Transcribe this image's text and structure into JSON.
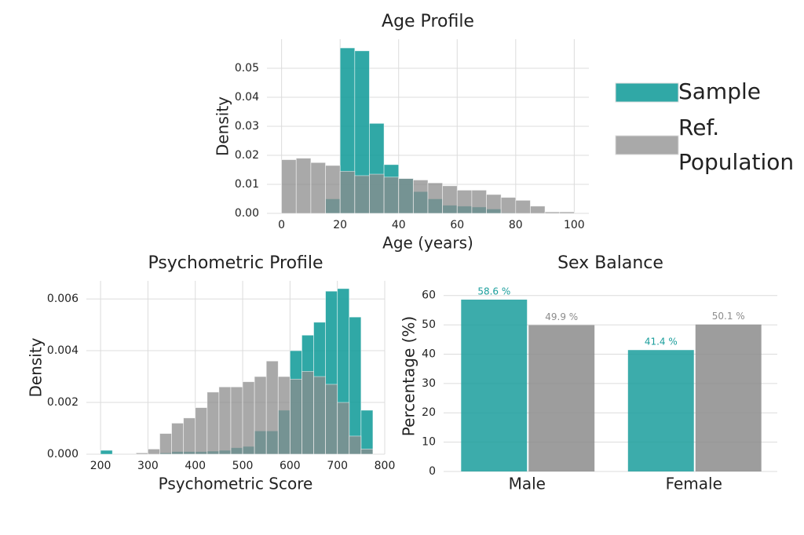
{
  "chart_data": [
    {
      "type": "histogram",
      "title": "Age Profile",
      "x_label": "Age (years)",
      "y_label": "Density",
      "bins": [
        0,
        5,
        10,
        15,
        20,
        25,
        30,
        35,
        40,
        45,
        50,
        55,
        60,
        65,
        70,
        75,
        80,
        85,
        90,
        95,
        100
      ],
      "series": [
        {
          "name": "Sample",
          "color": "#1a9e9c",
          "values": [
            0,
            0,
            0,
            0.005,
            0.057,
            0.056,
            0.031,
            0.0168,
            0.012,
            0.0075,
            0.005,
            0.0028,
            0.0025,
            0.0022,
            0.0015,
            0.0002,
            0,
            0,
            0,
            0
          ]
        },
        {
          "name": "Ref. Population",
          "color": "#8c8c8c",
          "values": [
            0.0185,
            0.019,
            0.0175,
            0.0165,
            0.0145,
            0.013,
            0.0135,
            0.0125,
            0.012,
            0.0115,
            0.0105,
            0.0095,
            0.008,
            0.008,
            0.0065,
            0.0055,
            0.0045,
            0.0025,
            0.0005,
            0.0005
          ]
        }
      ],
      "xlim": [
        -5,
        105
      ],
      "xticks": [
        0,
        20,
        40,
        60,
        80,
        100
      ],
      "ylim": [
        0,
        0.06
      ],
      "yticks": [
        {
          "value": 0,
          "label": "0.00"
        },
        {
          "value": 0.01,
          "label": "0.01"
        },
        {
          "value": 0.02,
          "label": "0.02"
        },
        {
          "value": 0.03,
          "label": "0.03"
        },
        {
          "value": 0.04,
          "label": "0.04"
        },
        {
          "value": 0.05,
          "label": "0.05"
        }
      ],
      "grid": true
    },
    {
      "type": "histogram",
      "title": "Psychometric Profile",
      "x_label": "Psychometric Score",
      "y_label": "Density",
      "bins": [
        200,
        225,
        250,
        275,
        300,
        325,
        350,
        375,
        400,
        425,
        450,
        475,
        500,
        525,
        550,
        575,
        600,
        625,
        650,
        675,
        700,
        725,
        750,
        775
      ],
      "series": [
        {
          "color": "#1a9e9c",
          "values": [
            0.00015,
            0,
            0,
            0,
            0,
            5e-05,
            0.0001,
            0.0001,
            0.0001,
            0.00012,
            0.00015,
            0.00025,
            0.0003,
            0.0009,
            0.0009,
            0.0017,
            0.004,
            0.0046,
            0.0051,
            0.0063,
            0.0064,
            0.0053,
            0.0017
          ]
        },
        {
          "color": "#8c8c8c",
          "values": [
            0,
            0,
            0,
            5e-05,
            0.0002,
            0.0008,
            0.0012,
            0.0014,
            0.0018,
            0.0024,
            0.0026,
            0.0026,
            0.0028,
            0.003,
            0.0036,
            0.003,
            0.0029,
            0.0032,
            0.003,
            0.0027,
            0.002,
            0.0007,
            0.0002
          ]
        }
      ],
      "xlim": [
        170,
        800
      ],
      "xticks": [
        200,
        300,
        400,
        500,
        600,
        700,
        800
      ],
      "ylim": [
        0,
        0.0067
      ],
      "yticks": [
        {
          "value": 0,
          "label": "0.000"
        },
        {
          "value": 0.002,
          "label": "0.002"
        },
        {
          "value": 0.004,
          "label": "0.004"
        },
        {
          "value": 0.006,
          "label": "0.006"
        }
      ],
      "grid": true
    },
    {
      "type": "bar",
      "title": "Sex Balance",
      "y_label": "Percentage (%)",
      "categories": [
        "Male",
        "Female"
      ],
      "series": [
        {
          "color": "#1a9e9c",
          "values": [
            58.6,
            41.4
          ],
          "value_labels": [
            "58.6 %",
            "41.4 %"
          ]
        },
        {
          "color": "#8c8c8c",
          "values": [
            49.9,
            50.1
          ],
          "value_labels": [
            "49.9 %",
            "50.1 %"
          ]
        }
      ],
      "ylim": [
        0,
        65
      ],
      "yticks": [
        0,
        10,
        20,
        30,
        40,
        50,
        60
      ],
      "grid": true
    }
  ]
}
